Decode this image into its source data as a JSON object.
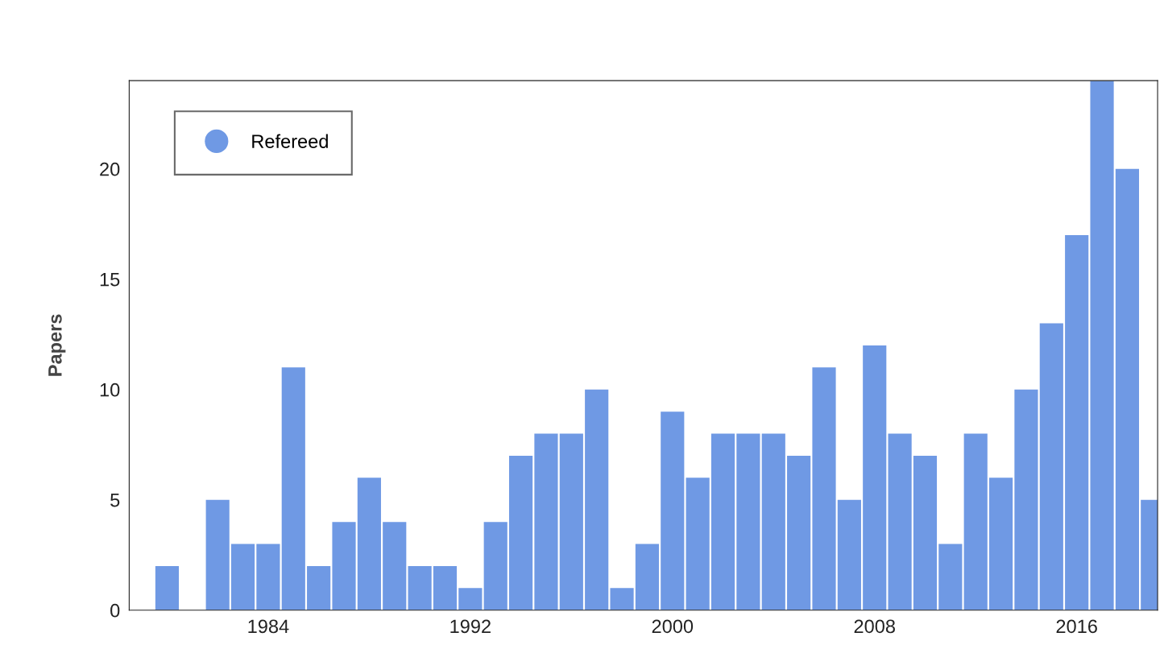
{
  "chart_data": {
    "type": "bar",
    "ylabel": "Papers",
    "x": [
      1980,
      1981,
      1982,
      1983,
      1984,
      1985,
      1986,
      1987,
      1988,
      1989,
      1990,
      1991,
      1992,
      1993,
      1994,
      1995,
      1996,
      1997,
      1998,
      1999,
      2000,
      2001,
      2002,
      2003,
      2004,
      2005,
      2006,
      2007,
      2008,
      2009,
      2010,
      2011,
      2012,
      2013,
      2014,
      2015,
      2016,
      2017,
      2018,
      2019
    ],
    "series": [
      {
        "name": "Refereed",
        "color": "#6f99e4",
        "values": [
          2,
          0,
          5,
          3,
          3,
          11,
          2,
          4,
          6,
          4,
          2,
          2,
          1,
          4,
          7,
          8,
          8,
          10,
          1,
          3,
          9,
          6,
          8,
          8,
          8,
          7,
          11,
          5,
          12,
          8,
          7,
          3,
          8,
          6,
          10,
          13,
          17,
          24,
          20,
          5
        ]
      }
    ],
    "xlim": [
      1978.5,
      2019.2
    ],
    "xticks": [
      1984,
      1992,
      2000,
      2008,
      2016
    ],
    "ylim": [
      0,
      24
    ],
    "yticks": [
      0,
      5,
      10,
      15,
      20
    ],
    "grid": false,
    "legend": "top left",
    "marker": "circle"
  }
}
